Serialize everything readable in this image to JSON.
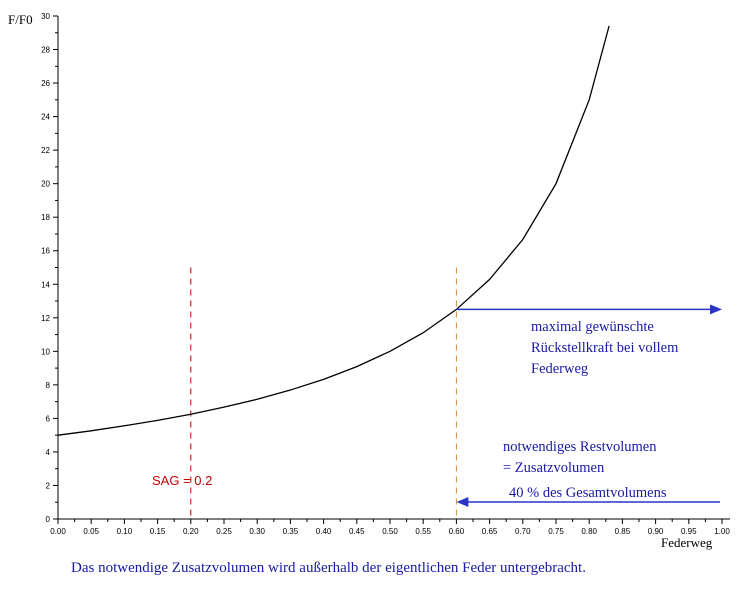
{
  "chart_data": {
    "type": "line",
    "ylabel": "F/F0",
    "xlabel": "Federweg",
    "xlim": [
      0,
      1
    ],
    "ylim": [
      0,
      30
    ],
    "x_ticks": [
      "0.00",
      "0.05",
      "0.10",
      "0.15",
      "0.20",
      "0.25",
      "0.30",
      "0.35",
      "0.40",
      "0.45",
      "0.50",
      "0.55",
      "0.60",
      "0.65",
      "0.70",
      "0.75",
      "0.80",
      "0.85",
      "0.90",
      "0.95",
      "1.00"
    ],
    "y_ticks": [
      "0",
      "2",
      "4",
      "6",
      "8",
      "10",
      "12",
      "14",
      "16",
      "18",
      "20",
      "22",
      "24",
      "26",
      "28",
      "30"
    ],
    "grid": false,
    "series": [
      {
        "x": [
          0.0,
          0.05,
          0.1,
          0.15,
          0.2,
          0.25,
          0.3,
          0.35,
          0.4,
          0.45,
          0.5,
          0.55,
          0.6,
          0.65,
          0.7,
          0.75,
          0.8,
          0.83
        ],
        "y": [
          5.0,
          5.26,
          5.56,
          5.88,
          6.25,
          6.67,
          7.14,
          7.69,
          8.33,
          9.09,
          10.0,
          11.11,
          12.5,
          14.29,
          16.67,
          20.0,
          25.0,
          29.41
        ]
      }
    ],
    "vertical_markers": [
      {
        "x": 0.2,
        "y_top": 15,
        "color": "#cc0000"
      },
      {
        "x": 0.6,
        "y_top": 15,
        "color": "#c89030"
      }
    ],
    "annotations": {
      "sag": "SAG  =  0.2",
      "max_force": [
        "maximal gewünschte",
        "Rückstellkraft bei vollem",
        "Federweg"
      ],
      "rest_volume": [
        "notwendiges Restvolumen",
        "= Zusatzvolumen"
      ],
      "percent": "40 % des Gesamtvolumens",
      "caption": "Das notwendige Zusatzvolumen wird außerhalb der eigentlichen Feder untergebracht."
    },
    "colors": {
      "curve": "#000000",
      "arrow": "#2a35c8",
      "annotation_text": "#1a1aa6",
      "sag_text": "#cc0000"
    }
  }
}
